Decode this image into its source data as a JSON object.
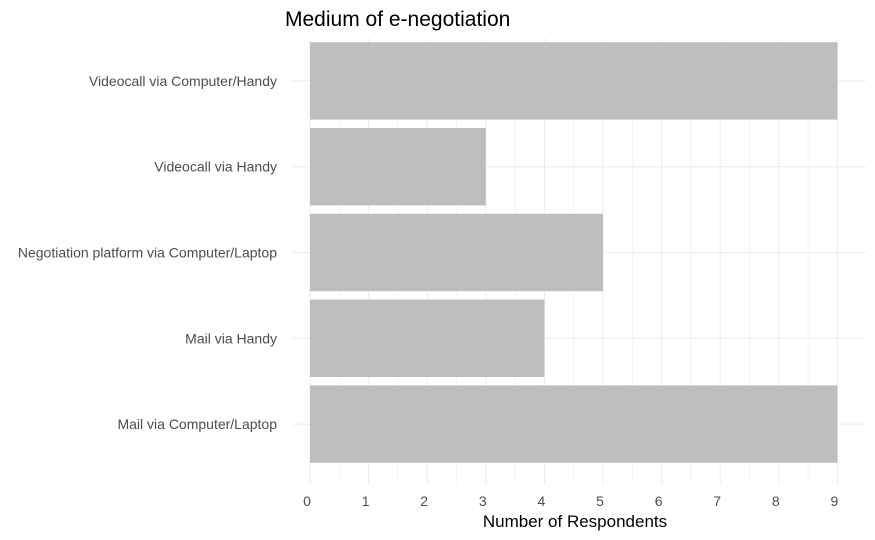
{
  "chart_data": {
    "type": "bar",
    "orientation": "horizontal",
    "title": "Medium of e-negotiation",
    "xlabel": "Number of Respondents",
    "ylabel": "",
    "categories": [
      "Videocall via Computer/Handy",
      "Videocall via Handy",
      "Negotiation platform via Computer/Laptop",
      "Mail via Handy",
      "Mail via Computer/Laptop"
    ],
    "values": [
      9,
      3,
      5,
      4,
      9
    ],
    "xlim": [
      0,
      9
    ],
    "x_ticks": [
      "0",
      "1",
      "2",
      "3",
      "4",
      "5",
      "6",
      "7",
      "8",
      "9"
    ],
    "grid": true,
    "legend": "none",
    "colors": {
      "bar": "#bebebe",
      "grid_major": "#ebebeb",
      "grid_minor": "#f4f4f4",
      "label": "#4d4d4d",
      "title": "#000000",
      "background": "#ffffff"
    }
  }
}
